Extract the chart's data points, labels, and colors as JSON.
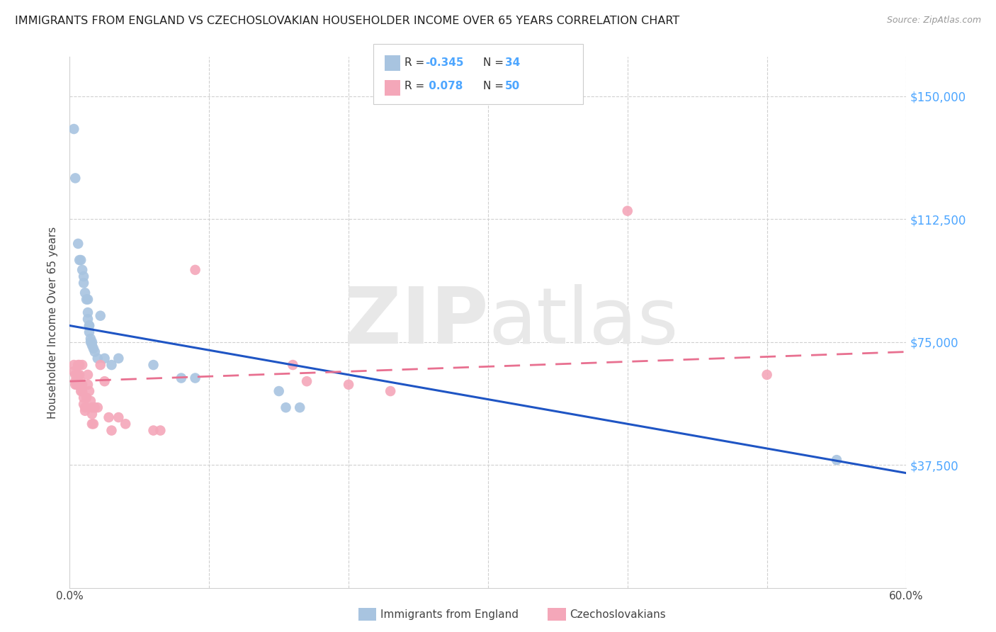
{
  "title": "IMMIGRANTS FROM ENGLAND VS CZECHOSLOVAKIAN HOUSEHOLDER INCOME OVER 65 YEARS CORRELATION CHART",
  "source": "Source: ZipAtlas.com",
  "ylabel": "Householder Income Over 65 years",
  "xlim": [
    0.0,
    0.6
  ],
  "ylim": [
    0,
    162000
  ],
  "yticks": [
    0,
    37500,
    75000,
    112500,
    150000
  ],
  "ytick_labels": [
    "",
    "$37,500",
    "$75,000",
    "$112,500",
    "$150,000"
  ],
  "xticks": [
    0.0,
    0.1,
    0.2,
    0.3,
    0.4,
    0.5,
    0.6
  ],
  "xtick_labels": [
    "0.0%",
    "",
    "",
    "",
    "",
    "",
    "60.0%"
  ],
  "england_color": "#a8c4e0",
  "czech_color": "#f4a7b9",
  "england_line_color": "#1f55c4",
  "czech_line_color": "#e87090",
  "watermark_zip": "ZIP",
  "watermark_atlas": "atlas",
  "background_color": "#ffffff",
  "england_points": [
    [
      0.003,
      140000
    ],
    [
      0.004,
      125000
    ],
    [
      0.006,
      105000
    ],
    [
      0.007,
      100000
    ],
    [
      0.008,
      100000
    ],
    [
      0.009,
      97000
    ],
    [
      0.01,
      95000
    ],
    [
      0.01,
      93000
    ],
    [
      0.011,
      90000
    ],
    [
      0.012,
      88000
    ],
    [
      0.013,
      88000
    ],
    [
      0.013,
      84000
    ],
    [
      0.013,
      82000
    ],
    [
      0.014,
      80000
    ],
    [
      0.014,
      80000
    ],
    [
      0.014,
      78000
    ],
    [
      0.015,
      76000
    ],
    [
      0.015,
      75000
    ],
    [
      0.016,
      75000
    ],
    [
      0.016,
      74000
    ],
    [
      0.017,
      73000
    ],
    [
      0.018,
      72000
    ],
    [
      0.02,
      70000
    ],
    [
      0.022,
      83000
    ],
    [
      0.025,
      70000
    ],
    [
      0.03,
      68000
    ],
    [
      0.035,
      70000
    ],
    [
      0.06,
      68000
    ],
    [
      0.08,
      64000
    ],
    [
      0.09,
      64000
    ],
    [
      0.15,
      60000
    ],
    [
      0.155,
      55000
    ],
    [
      0.165,
      55000
    ],
    [
      0.55,
      39000
    ]
  ],
  "czech_points": [
    [
      0.003,
      68000
    ],
    [
      0.003,
      66000
    ],
    [
      0.004,
      65000
    ],
    [
      0.004,
      63000
    ],
    [
      0.004,
      62000
    ],
    [
      0.005,
      65000
    ],
    [
      0.005,
      63000
    ],
    [
      0.005,
      62000
    ],
    [
      0.006,
      68000
    ],
    [
      0.006,
      65000
    ],
    [
      0.006,
      63000
    ],
    [
      0.006,
      62000
    ],
    [
      0.007,
      68000
    ],
    [
      0.007,
      65000
    ],
    [
      0.007,
      62000
    ],
    [
      0.008,
      63000
    ],
    [
      0.008,
      60000
    ],
    [
      0.009,
      68000
    ],
    [
      0.009,
      62000
    ],
    [
      0.009,
      60000
    ],
    [
      0.01,
      58000
    ],
    [
      0.01,
      56000
    ],
    [
      0.011,
      55000
    ],
    [
      0.011,
      54000
    ],
    [
      0.012,
      58000
    ],
    [
      0.013,
      65000
    ],
    [
      0.013,
      62000
    ],
    [
      0.014,
      60000
    ],
    [
      0.015,
      57000
    ],
    [
      0.016,
      55000
    ],
    [
      0.016,
      53000
    ],
    [
      0.016,
      50000
    ],
    [
      0.017,
      50000
    ],
    [
      0.018,
      55000
    ],
    [
      0.02,
      55000
    ],
    [
      0.022,
      68000
    ],
    [
      0.025,
      63000
    ],
    [
      0.028,
      52000
    ],
    [
      0.03,
      48000
    ],
    [
      0.035,
      52000
    ],
    [
      0.04,
      50000
    ],
    [
      0.06,
      48000
    ],
    [
      0.065,
      48000
    ],
    [
      0.09,
      97000
    ],
    [
      0.16,
      68000
    ],
    [
      0.17,
      63000
    ],
    [
      0.2,
      62000
    ],
    [
      0.23,
      60000
    ],
    [
      0.4,
      115000
    ],
    [
      0.5,
      65000
    ]
  ],
  "england_line": [
    0.0,
    0.6
  ],
  "eng_line_y0": 80000,
  "eng_line_y1": 35000,
  "cze_line_y0": 63000,
  "cze_line_y1": 72000
}
